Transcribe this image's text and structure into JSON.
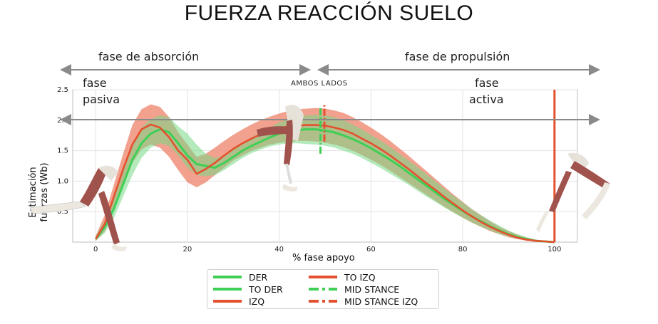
{
  "title": "FUERZA REACCIÓN SUELO",
  "annotations": {
    "absorption_phase": "fase de absorción",
    "propulsion_phase": "fase de propulsión",
    "passive_line1": "fase",
    "passive_line2": "pasiva",
    "active_line1": "fase",
    "active_line2": "activa",
    "both_sides": "AMBOS LADOS"
  },
  "colors": {
    "green": "#3fcf55",
    "red": "#e4512f",
    "band_green": "#78d987",
    "band_red": "#ee8a72",
    "arrow_gray": "#8a8a8a",
    "skeleton_muscle": "#9a4a46",
    "skeleton_bone": "#ece8e0"
  },
  "icons": [
    "leg-skeleton-icon"
  ],
  "chart_data": {
    "type": "line",
    "title": "",
    "xlabel": "% fase apoyo",
    "ylabel": "Estimación fuerzas (Wb)",
    "xlim": [
      -5,
      105
    ],
    "ylim": [
      0,
      2.5
    ],
    "xticks": [
      0,
      20,
      40,
      60,
      80,
      100
    ],
    "yticks": [
      0.5,
      1.0,
      1.5,
      2.0,
      2.5
    ],
    "xtick_labels": [
      "0",
      "20",
      "40",
      "60",
      "80",
      "100"
    ],
    "ytick_labels": [
      "0.5",
      "1.0",
      "1.5",
      "2.0",
      "2.5"
    ],
    "grid": true,
    "legend_position": "bottom-center",
    "series": [
      {
        "name": "DER",
        "color": "#3fcf55",
        "x": [
          0,
          2,
          4,
          6,
          8,
          10,
          12,
          14,
          16,
          18,
          20,
          22,
          24,
          26,
          28,
          30,
          32,
          34,
          36,
          38,
          40,
          42,
          44,
          46,
          48,
          50,
          52,
          54,
          56,
          58,
          60,
          62,
          64,
          66,
          68,
          70,
          72,
          74,
          76,
          78,
          80,
          82,
          84,
          86,
          88,
          90,
          92,
          94,
          96,
          98,
          100
        ],
        "y": [
          0.05,
          0.25,
          0.55,
          0.95,
          1.35,
          1.62,
          1.78,
          1.85,
          1.8,
          1.62,
          1.42,
          1.28,
          1.25,
          1.22,
          1.3,
          1.4,
          1.5,
          1.58,
          1.65,
          1.72,
          1.78,
          1.82,
          1.84,
          1.85,
          1.85,
          1.83,
          1.8,
          1.75,
          1.69,
          1.62,
          1.54,
          1.45,
          1.36,
          1.26,
          1.15,
          1.04,
          0.93,
          0.82,
          0.71,
          0.61,
          0.51,
          0.42,
          0.34,
          0.26,
          0.19,
          0.13,
          0.08,
          0.05,
          0.02,
          0.01,
          0.0
        ],
        "band_low": [
          0.02,
          0.15,
          0.4,
          0.75,
          1.1,
          1.38,
          1.55,
          1.62,
          1.58,
          1.42,
          1.22,
          1.1,
          1.08,
          1.1,
          1.18,
          1.28,
          1.38,
          1.46,
          1.52,
          1.57,
          1.6,
          1.62,
          1.62,
          1.61,
          1.6,
          1.58,
          1.55,
          1.5,
          1.45,
          1.38,
          1.3,
          1.22,
          1.13,
          1.04,
          0.95,
          0.85,
          0.75,
          0.66,
          0.57,
          0.48,
          0.4,
          0.32,
          0.25,
          0.19,
          0.13,
          0.09,
          0.05,
          0.03,
          0.01,
          0.0,
          0.0
        ],
        "band_high": [
          0.1,
          0.35,
          0.72,
          1.15,
          1.58,
          1.88,
          2.02,
          2.08,
          2.05,
          1.9,
          1.78,
          1.6,
          1.45,
          1.38,
          1.42,
          1.52,
          1.62,
          1.72,
          1.8,
          1.88,
          1.96,
          2.02,
          2.06,
          2.08,
          2.09,
          2.08,
          2.05,
          2.0,
          1.93,
          1.85,
          1.76,
          1.67,
          1.57,
          1.46,
          1.35,
          1.24,
          1.12,
          1.0,
          0.88,
          0.76,
          0.65,
          0.54,
          0.44,
          0.35,
          0.27,
          0.19,
          0.13,
          0.08,
          0.04,
          0.02,
          0.01
        ]
      },
      {
        "name": "TO DER",
        "color": "#3fcf55",
        "x": [],
        "y": []
      },
      {
        "name": "IZQ",
        "color": "#e4512f",
        "x": [
          0,
          2,
          4,
          6,
          8,
          10,
          12,
          14,
          16,
          18,
          20,
          22,
          24,
          26,
          28,
          30,
          32,
          34,
          36,
          38,
          40,
          42,
          44,
          46,
          48,
          50,
          52,
          54,
          56,
          58,
          60,
          62,
          64,
          66,
          68,
          70,
          72,
          74,
          76,
          78,
          80,
          82,
          84,
          86,
          88,
          90,
          92,
          94,
          96,
          98,
          100
        ],
        "y": [
          0.05,
          0.3,
          0.75,
          1.2,
          1.6,
          1.85,
          1.93,
          1.88,
          1.72,
          1.5,
          1.35,
          1.12,
          1.2,
          1.3,
          1.42,
          1.53,
          1.62,
          1.7,
          1.77,
          1.83,
          1.87,
          1.9,
          1.91,
          1.92,
          1.92,
          1.91,
          1.88,
          1.84,
          1.78,
          1.7,
          1.62,
          1.53,
          1.43,
          1.32,
          1.21,
          1.09,
          0.97,
          0.86,
          0.74,
          0.63,
          0.52,
          0.42,
          0.33,
          0.25,
          0.18,
          0.12,
          0.07,
          0.04,
          0.02,
          0.01,
          0.0
        ],
        "band_low": [
          0.02,
          0.18,
          0.55,
          0.95,
          1.3,
          1.52,
          1.6,
          1.55,
          1.4,
          1.18,
          0.98,
          0.9,
          0.98,
          1.1,
          1.22,
          1.34,
          1.42,
          1.5,
          1.55,
          1.6,
          1.63,
          1.65,
          1.66,
          1.66,
          1.65,
          1.63,
          1.6,
          1.56,
          1.5,
          1.43,
          1.35,
          1.27,
          1.18,
          1.08,
          0.98,
          0.88,
          0.78,
          0.68,
          0.58,
          0.49,
          0.4,
          0.32,
          0.25,
          0.18,
          0.13,
          0.08,
          0.05,
          0.02,
          0.01,
          0.0,
          0.0
        ],
        "band_high": [
          0.1,
          0.45,
          0.95,
          1.45,
          1.92,
          2.18,
          2.26,
          2.22,
          2.05,
          1.8,
          1.6,
          1.4,
          1.45,
          1.55,
          1.66,
          1.76,
          1.85,
          1.93,
          2.0,
          2.06,
          2.11,
          2.15,
          2.18,
          2.19,
          2.2,
          2.19,
          2.16,
          2.12,
          2.05,
          1.97,
          1.88,
          1.78,
          1.67,
          1.55,
          1.43,
          1.3,
          1.17,
          1.04,
          0.91,
          0.78,
          0.66,
          0.54,
          0.44,
          0.34,
          0.25,
          0.18,
          0.12,
          0.07,
          0.04,
          0.02,
          0.01
        ]
      },
      {
        "name": "TO IZQ",
        "color": "#e4512f",
        "type": "vline",
        "x": 100
      },
      {
        "name": "MID STANCE",
        "color": "#3fcf55",
        "type": "vline-dashdot",
        "x": 49,
        "y_range": [
          1.45,
          2.2
        ]
      },
      {
        "name": "MID STANCE IZQ",
        "color": "#e4512f",
        "type": "vline-dashdot",
        "x": 50,
        "y_range": [
          1.65,
          2.25
        ]
      }
    ]
  }
}
